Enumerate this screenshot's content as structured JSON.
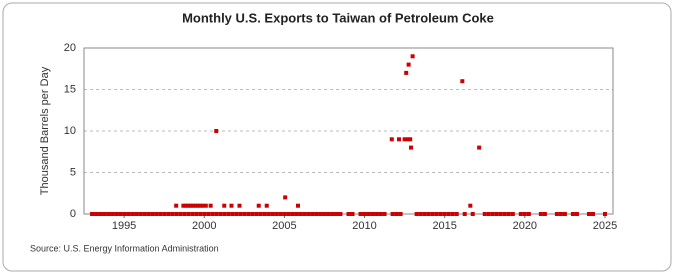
{
  "chart_data": {
    "type": "scatter",
    "title": "Monthly U.S. Exports to Taiwan of Petroleum Coke",
    "y_label": "Thousand Barrels per Day",
    "source": "Source: U.S. Energy Information Administration",
    "color": "#cc0000",
    "grid": true,
    "xlim": [
      1992.5,
      2025.5
    ],
    "xticks": [
      1995,
      2000,
      2005,
      2010,
      2015,
      2020,
      2025
    ],
    "ylim": [
      0,
      20
    ],
    "yticks": [
      0,
      5,
      10,
      15,
      20
    ],
    "x": [
      1998.25,
      1998.7,
      1998.85,
      1999.0,
      1999.15,
      1999.3,
      1999.45,
      1999.6,
      1999.75,
      1999.9,
      2000.1,
      2000.4,
      2000.75,
      2001.25,
      2001.7,
      2002.2,
      2003.4,
      2003.9,
      2005.05,
      2005.85,
      2011.7,
      2012.15,
      2012.5,
      2012.6,
      2012.7,
      2012.75,
      2012.85,
      2012.9,
      2013.0,
      2016.1,
      2016.6,
      2017.15,
      1993,
      1993.25,
      1993.5,
      1993.75,
      1994,
      1994.25,
      1994.5,
      1994.75,
      1995,
      1995.25,
      1995.5,
      1995.75,
      1996,
      1996.25,
      1996.5,
      1996.75,
      1997,
      1997.25,
      1997.5,
      1997.75,
      1998,
      1998.25,
      1998.5,
      1998.75,
      1999,
      1999.25,
      1999.5,
      1999.75,
      2000,
      2000.25,
      2000.5,
      2000.75,
      2001,
      2001.25,
      2001.5,
      2001.75,
      2002,
      2002.25,
      2002.5,
      2002.75,
      2003,
      2003.25,
      2003.5,
      2003.75,
      2004,
      2004.25,
      2004.5,
      2004.75,
      2005,
      2005.25,
      2005.5,
      2005.75,
      2006,
      2006.25,
      2006.5,
      2006.75,
      2007,
      2007.25,
      2007.5,
      2007.75,
      2008,
      2008.25,
      2008.5,
      2009,
      2009.25,
      2009.75,
      2010,
      2010.25,
      2010.5,
      2010.75,
      2011,
      2011.25,
      2011.75,
      2012,
      2012.25,
      2013.25,
      2013.5,
      2013.75,
      2014,
      2014.25,
      2014.5,
      2014.75,
      2015,
      2015.25,
      2015.5,
      2015.75,
      2016.25,
      2016.75,
      2017.5,
      2017.75,
      2018,
      2018.25,
      2018.5,
      2018.75,
      2019,
      2019.25,
      2019.75,
      2020,
      2020.25,
      2021,
      2021.25,
      2022,
      2022.25,
      2022.5,
      2023,
      2023.25,
      2024,
      2024.25,
      2025
    ],
    "values": [
      1,
      1,
      1,
      1,
      1,
      1,
      1,
      1,
      1,
      1,
      1,
      1,
      10,
      1,
      1,
      1,
      1,
      1,
      2,
      1,
      9,
      9,
      9,
      17,
      9,
      18,
      9,
      8,
      19,
      16,
      1,
      8,
      0,
      0,
      0,
      0,
      0,
      0,
      0,
      0,
      0,
      0,
      0,
      0,
      0,
      0,
      0,
      0,
      0,
      0,
      0,
      0,
      0,
      0,
      0,
      0,
      0,
      0,
      0,
      0,
      0,
      0,
      0,
      0,
      0,
      0,
      0,
      0,
      0,
      0,
      0,
      0,
      0,
      0,
      0,
      0,
      0,
      0,
      0,
      0,
      0,
      0,
      0,
      0,
      0,
      0,
      0,
      0,
      0,
      0,
      0,
      0,
      0,
      0,
      0,
      0,
      0,
      0,
      0,
      0,
      0,
      0,
      0,
      0,
      0,
      0,
      0,
      0,
      0,
      0,
      0,
      0,
      0,
      0,
      0,
      0,
      0,
      0,
      0,
      0,
      0,
      0,
      0,
      0,
      0,
      0,
      0,
      0,
      0,
      0,
      0,
      0,
      0,
      0,
      0,
      0,
      0,
      0,
      0,
      0,
      0
    ]
  }
}
